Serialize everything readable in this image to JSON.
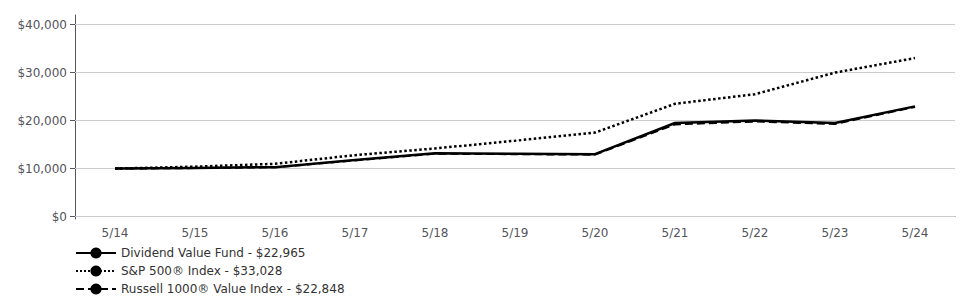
{
  "chart_data": {
    "type": "line",
    "categories": [
      "5/14",
      "5/15",
      "5/16",
      "5/17",
      "5/18",
      "5/19",
      "5/20",
      "5/21",
      "5/22",
      "5/23",
      "5/24"
    ],
    "series": [
      {
        "name": "Dividend Value Fund - $22,965",
        "color": "#000000",
        "line_style": "solid",
        "values": [
          10000,
          10150,
          10300,
          11800,
          13200,
          13100,
          13000,
          19500,
          20000,
          19500,
          22965
        ]
      },
      {
        "name": "S&P 500® Index - $33,028",
        "color": "#000000",
        "line_style": "dotted",
        "values": [
          10000,
          10400,
          11000,
          12800,
          14200,
          15800,
          17500,
          23500,
          25500,
          30000,
          33028
        ]
      },
      {
        "name": "Russell 1000® Value Index - $22,848",
        "color": "#000000",
        "line_style": "dashed",
        "values": [
          10000,
          10100,
          10280,
          11700,
          13100,
          13000,
          12900,
          19200,
          19800,
          19300,
          22848
        ]
      }
    ],
    "ylim": [
      -500,
      42000
    ],
    "yticks": [
      {
        "value": 0,
        "label": "$0"
      },
      {
        "value": 10000,
        "label": "$10,000"
      },
      {
        "value": 20000,
        "label": "$20,000"
      },
      {
        "value": 30000,
        "label": "$30,000"
      },
      {
        "value": 40000,
        "label": "$40,000"
      }
    ],
    "grid": true,
    "legend": "bottom"
  }
}
